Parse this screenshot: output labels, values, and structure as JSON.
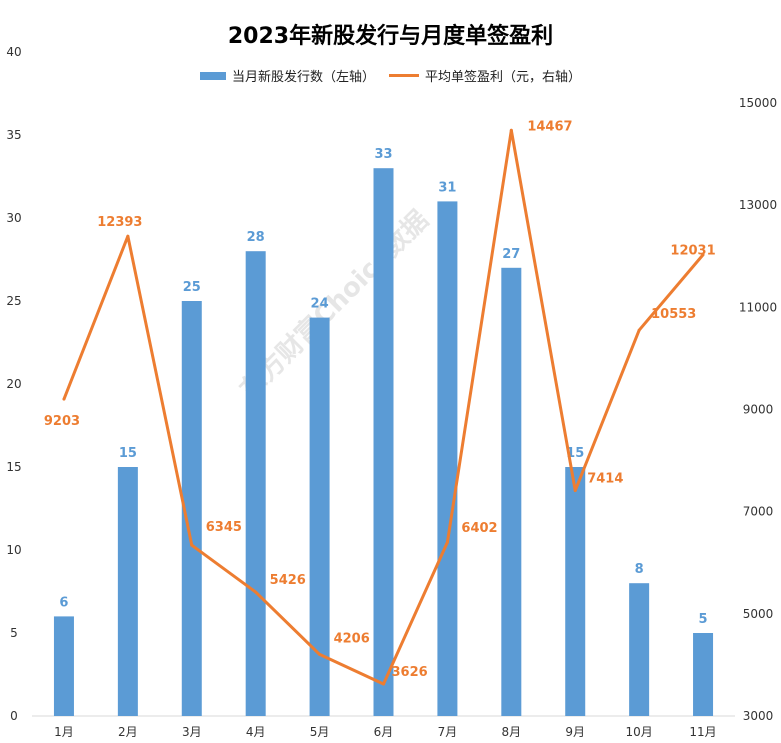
{
  "chart_data": {
    "type": "bar+line",
    "title": "2023年新股发行与月度单签盈利",
    "categories": [
      "1月",
      "2月",
      "3月",
      "4月",
      "5月",
      "6月",
      "7月",
      "8月",
      "9月",
      "10月",
      "11月"
    ],
    "series": [
      {
        "name": "当月新股发行数（左轴）",
        "type": "bar",
        "axis": "left",
        "color": "#5b9bd5",
        "values": [
          6,
          15,
          25,
          28,
          24,
          33,
          31,
          27,
          15,
          8,
          5
        ]
      },
      {
        "name": "平均单签盈利（元，右轴）",
        "type": "line",
        "axis": "right",
        "color": "#ed7d31",
        "values": [
          9203,
          12393,
          6345,
          5426,
          4206,
          3626,
          6402,
          14467,
          7414,
          10553,
          12031
        ]
      }
    ],
    "left_axis": {
      "ylim": [
        0,
        40
      ],
      "ticks": [
        0,
        5,
        10,
        15,
        20,
        25,
        30,
        35,
        40
      ]
    },
    "right_axis": {
      "ylim": [
        3000,
        16000
      ],
      "ticks": [
        3000,
        5000,
        7000,
        9000,
        11000,
        13000,
        15000
      ]
    },
    "legend": "top",
    "grid": false,
    "watermark": "东方财富Choice数据"
  }
}
